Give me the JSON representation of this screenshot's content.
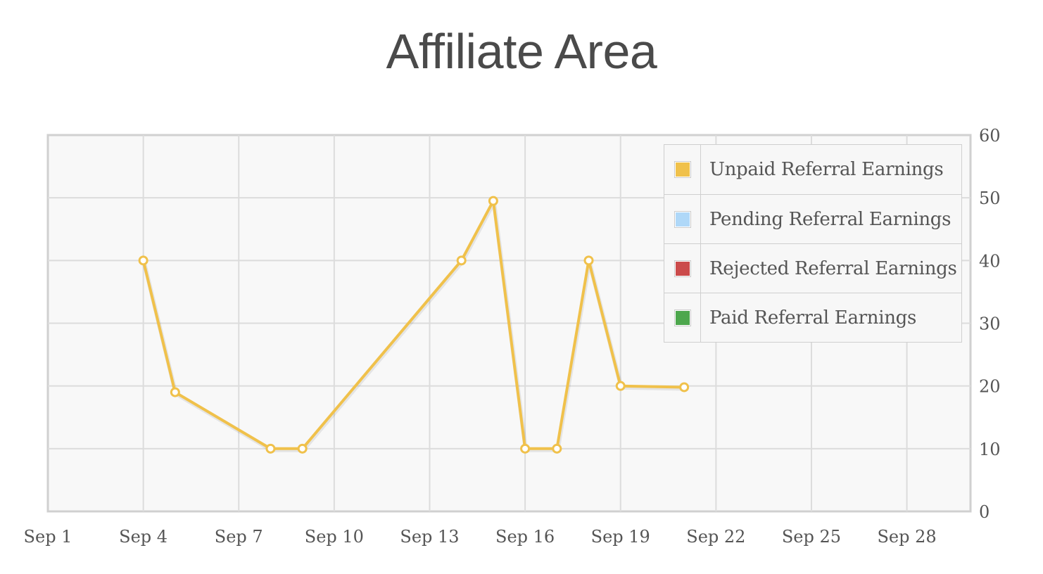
{
  "page": {
    "title": "Affiliate Area"
  },
  "chart_data": {
    "type": "line",
    "x_axis": {
      "type": "date",
      "min": "2017-09-01",
      "max": "2017-09-30",
      "ticks": [
        "Sep 1",
        "Sep 4",
        "Sep 7",
        "Sep 10",
        "Sep 13",
        "Sep 16",
        "Sep 19",
        "Sep 22",
        "Sep 25",
        "Sep 28"
      ]
    },
    "y_axis": {
      "position": "right",
      "min": 0,
      "max": 60,
      "ticks": [
        0,
        10,
        20,
        30,
        40,
        50,
        60
      ]
    },
    "grid": true,
    "legend_position": "top-right",
    "series": [
      {
        "name": "Unpaid Referral Earnings",
        "color": "#f0c14b",
        "points": [
          {
            "x": "2017-09-04",
            "y": 40
          },
          {
            "x": "2017-09-05",
            "y": 19
          },
          {
            "x": "2017-09-08",
            "y": 10
          },
          {
            "x": "2017-09-09",
            "y": 10
          },
          {
            "x": "2017-09-14",
            "y": 40
          },
          {
            "x": "2017-09-15",
            "y": 49.5
          },
          {
            "x": "2017-09-16",
            "y": 10
          },
          {
            "x": "2017-09-17",
            "y": 10
          },
          {
            "x": "2017-09-18",
            "y": 40
          },
          {
            "x": "2017-09-19",
            "y": 20
          },
          {
            "x": "2017-09-21",
            "y": 19.8
          }
        ]
      },
      {
        "name": "Pending Referral Earnings",
        "color": "#afd8f8",
        "points": []
      },
      {
        "name": "Rejected Referral Earnings",
        "color": "#cb4b4b",
        "points": []
      },
      {
        "name": "Paid Referral Earnings",
        "color": "#4da74d",
        "points": []
      }
    ]
  }
}
